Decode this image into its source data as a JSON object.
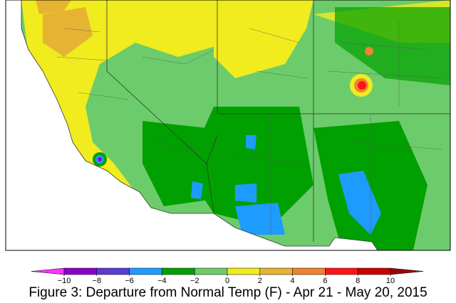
{
  "legend": {
    "ticks": [
      {
        "value": -10,
        "label": "−10"
      },
      {
        "value": -8,
        "label": "−8"
      },
      {
        "value": -6,
        "label": "−6"
      },
      {
        "value": -4,
        "label": "−4"
      },
      {
        "value": -2,
        "label": "−2"
      },
      0,
      2,
      4,
      6,
      8,
      10
    ],
    "under_color": "#ff33ff",
    "colors": [
      "#8c00c8",
      "#5a3cd2",
      "#1e9bff",
      "#00a000",
      "#6ccc6c",
      "#f0ec1e",
      "#e6b432",
      "#f08232",
      "#ff1414",
      "#c80000"
    ],
    "over_color": "#a00000"
  },
  "caption": "Figure 3: Departure from Normal Temp (F) - Apr 21 - May 20, 2015"
}
